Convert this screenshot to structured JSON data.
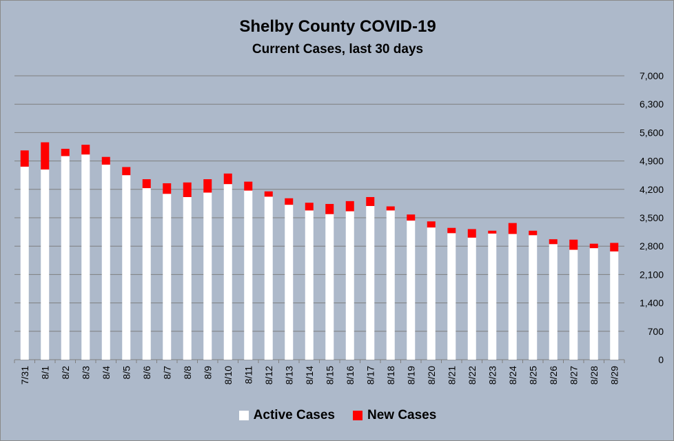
{
  "chart_data": {
    "type": "bar",
    "stacked": true,
    "title": "Shelby County COVID-19",
    "subtitle": "Current Cases, last 30 days",
    "categories": [
      "7/31",
      "8/1",
      "8/2",
      "8/3",
      "8/4",
      "8/5",
      "8/6",
      "8/7",
      "8/8",
      "8/9",
      "8/10",
      "8/11",
      "8/12",
      "8/13",
      "8/14",
      "8/15",
      "8/16",
      "8/17",
      "8/18",
      "8/19",
      "8/20",
      "8/21",
      "8/22",
      "8/23",
      "8/24",
      "8/25",
      "8/26",
      "8/27",
      "8/28",
      "8/29"
    ],
    "series": [
      {
        "name": "Active Cases",
        "color": "#ffffff",
        "values": [
          4760,
          4690,
          5020,
          5060,
          4810,
          4550,
          4230,
          4090,
          4010,
          4120,
          4330,
          4170,
          4020,
          3820,
          3680,
          3590,
          3660,
          3790,
          3680,
          3430,
          3260,
          3120,
          3010,
          3110,
          3100,
          3070,
          2850,
          2710,
          2750,
          2670
        ]
      },
      {
        "name": "New Cases",
        "color": "#ff0000",
        "values": [
          400,
          670,
          180,
          240,
          190,
          200,
          220,
          260,
          360,
          330,
          260,
          220,
          130,
          160,
          190,
          250,
          250,
          220,
          100,
          150,
          150,
          130,
          210,
          70,
          270,
          110,
          120,
          250,
          110,
          210
        ]
      }
    ],
    "ylim": [
      0,
      7000
    ],
    "yticks": [
      "0",
      "700",
      "1,400",
      "2,100",
      "2,800",
      "3,500",
      "4,200",
      "4,900",
      "5,600",
      "6,300",
      "7,000"
    ],
    "ytick_values": [
      0,
      700,
      1400,
      2100,
      2800,
      3500,
      4200,
      4900,
      5600,
      6300,
      7000
    ],
    "y_axis_side": "right",
    "grid": true,
    "legend_position": "bottom",
    "background_color": "#adb9ca",
    "grid_color": "#7f7f7f"
  }
}
